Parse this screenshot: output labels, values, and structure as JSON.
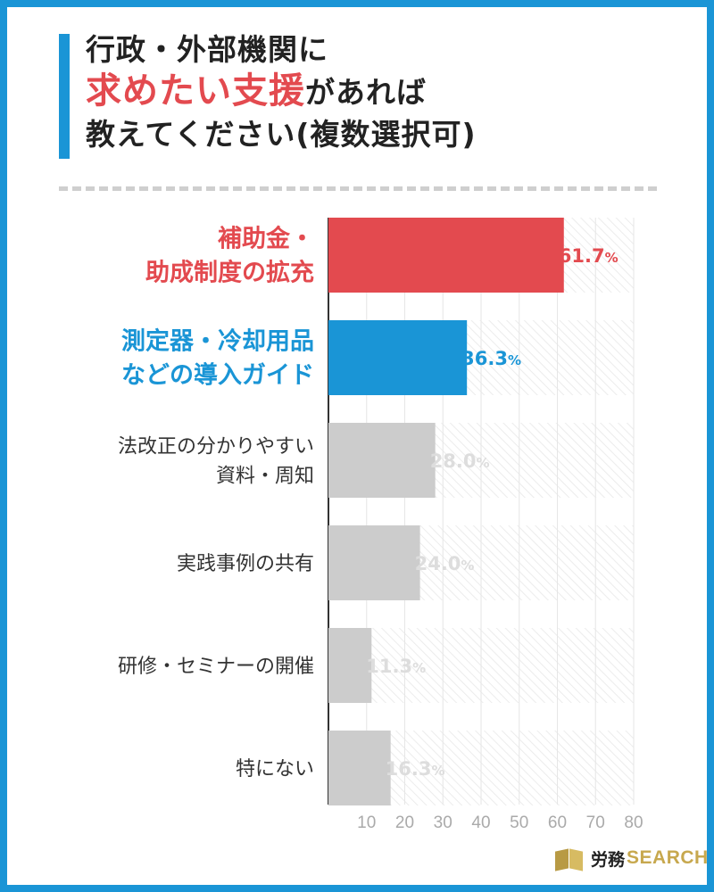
{
  "title": {
    "line1": "行政・外部機関に",
    "line2_highlight": "求めたい支援",
    "line2_rest": "があれば",
    "line3": "教えてください(複数選択可)"
  },
  "colors": {
    "accent_blue": "#1a95d6",
    "highlight_red": "#e34a4f",
    "bar_gray": "#cccccc",
    "label_gray": "#dddddd",
    "text_dark": "#222222",
    "brand_gold": "#c7a84e"
  },
  "chart_data": {
    "type": "bar",
    "orientation": "horizontal",
    "categories": [
      [
        "補助金・",
        "助成制度の拡充"
      ],
      [
        "測定器・冷却用品",
        "などの導入ガイド"
      ],
      [
        "法改正の分かりやすい",
        "資料・周知"
      ],
      [
        "実践事例の共有"
      ],
      [
        "研修・セミナーの開催"
      ],
      [
        "特にない"
      ]
    ],
    "values": [
      61.7,
      36.3,
      28.0,
      24.0,
      11.3,
      16.3
    ],
    "value_labels": [
      {
        "num": "61.7",
        "unit": "%"
      },
      {
        "num": "36.3",
        "unit": "%"
      },
      {
        "num": "28.0",
        "unit": "%"
      },
      {
        "num": "24.0",
        "unit": "%"
      },
      {
        "num": "11.3",
        "unit": "%"
      },
      {
        "num": "16.3",
        "unit": "%"
      }
    ],
    "bar_colors": [
      "#e34a4f",
      "#1a95d6",
      "#cccccc",
      "#cccccc",
      "#cccccc",
      "#cccccc"
    ],
    "label_colors": [
      "#e34a4f",
      "#1a95d6",
      "#333333",
      "#333333",
      "#333333",
      "#333333"
    ],
    "value_label_colors": [
      "#e34a4f",
      "#1a95d6",
      "#dddddd",
      "#dddddd",
      "#dddddd",
      "#dddddd"
    ],
    "x_ticks": [
      10,
      20,
      30,
      40,
      50,
      60,
      70,
      80
    ],
    "xlim": [
      0,
      80
    ],
    "grid": true
  },
  "brand": {
    "name": "労務",
    "sub": "SEARCH",
    "icon": "book-icon"
  }
}
